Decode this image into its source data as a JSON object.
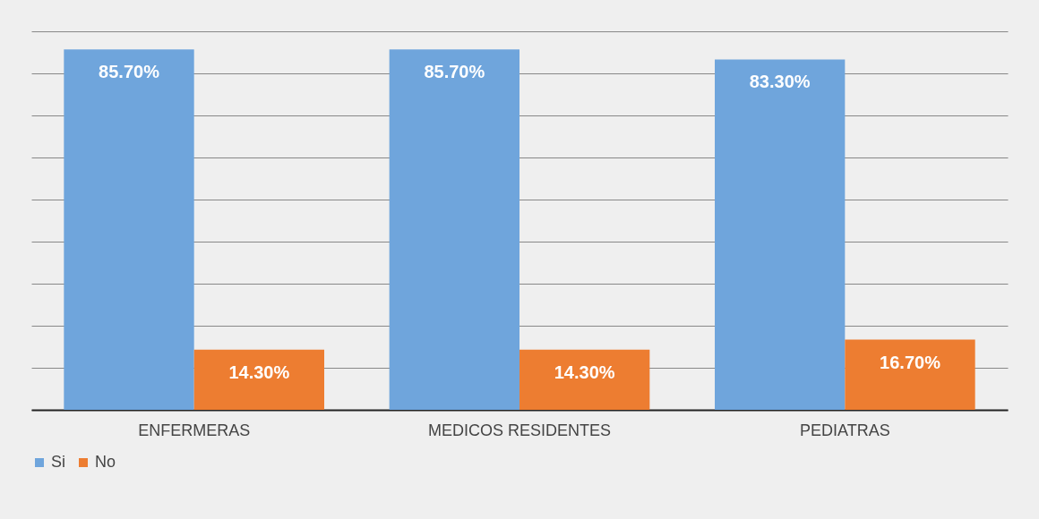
{
  "chart_data": {
    "type": "bar",
    "categories": [
      "ENFERMERAS",
      "MEDICOS RESIDENTES",
      "PEDIATRAS"
    ],
    "series": [
      {
        "name": "Si",
        "color": "#6fa5dc",
        "values": [
          85.7,
          85.7,
          83.3
        ],
        "value_labels": [
          "85.70%",
          "85.70%",
          "83.30%"
        ]
      },
      {
        "name": "No",
        "color": "#ed7d31",
        "values": [
          14.3,
          14.3,
          16.7
        ],
        "value_labels": [
          "14.30%",
          "14.30%",
          "16.70%"
        ]
      }
    ],
    "ylim": [
      0,
      90
    ],
    "yticks": [
      {
        "value": 0,
        "label": null
      },
      {
        "value": 10,
        "label": null
      },
      {
        "value": 20,
        "label": null
      },
      {
        "value": 30,
        "label": null
      },
      {
        "value": 40,
        "label": null
      },
      {
        "value": 50,
        "label": null
      },
      {
        "value": 60,
        "label": null
      },
      {
        "value": 70,
        "label": null
      },
      {
        "value": 80,
        "label": null
      },
      {
        "value": 90,
        "label": null
      }
    ],
    "grid": "y",
    "legend": "bottom",
    "tick_labels": "x"
  }
}
